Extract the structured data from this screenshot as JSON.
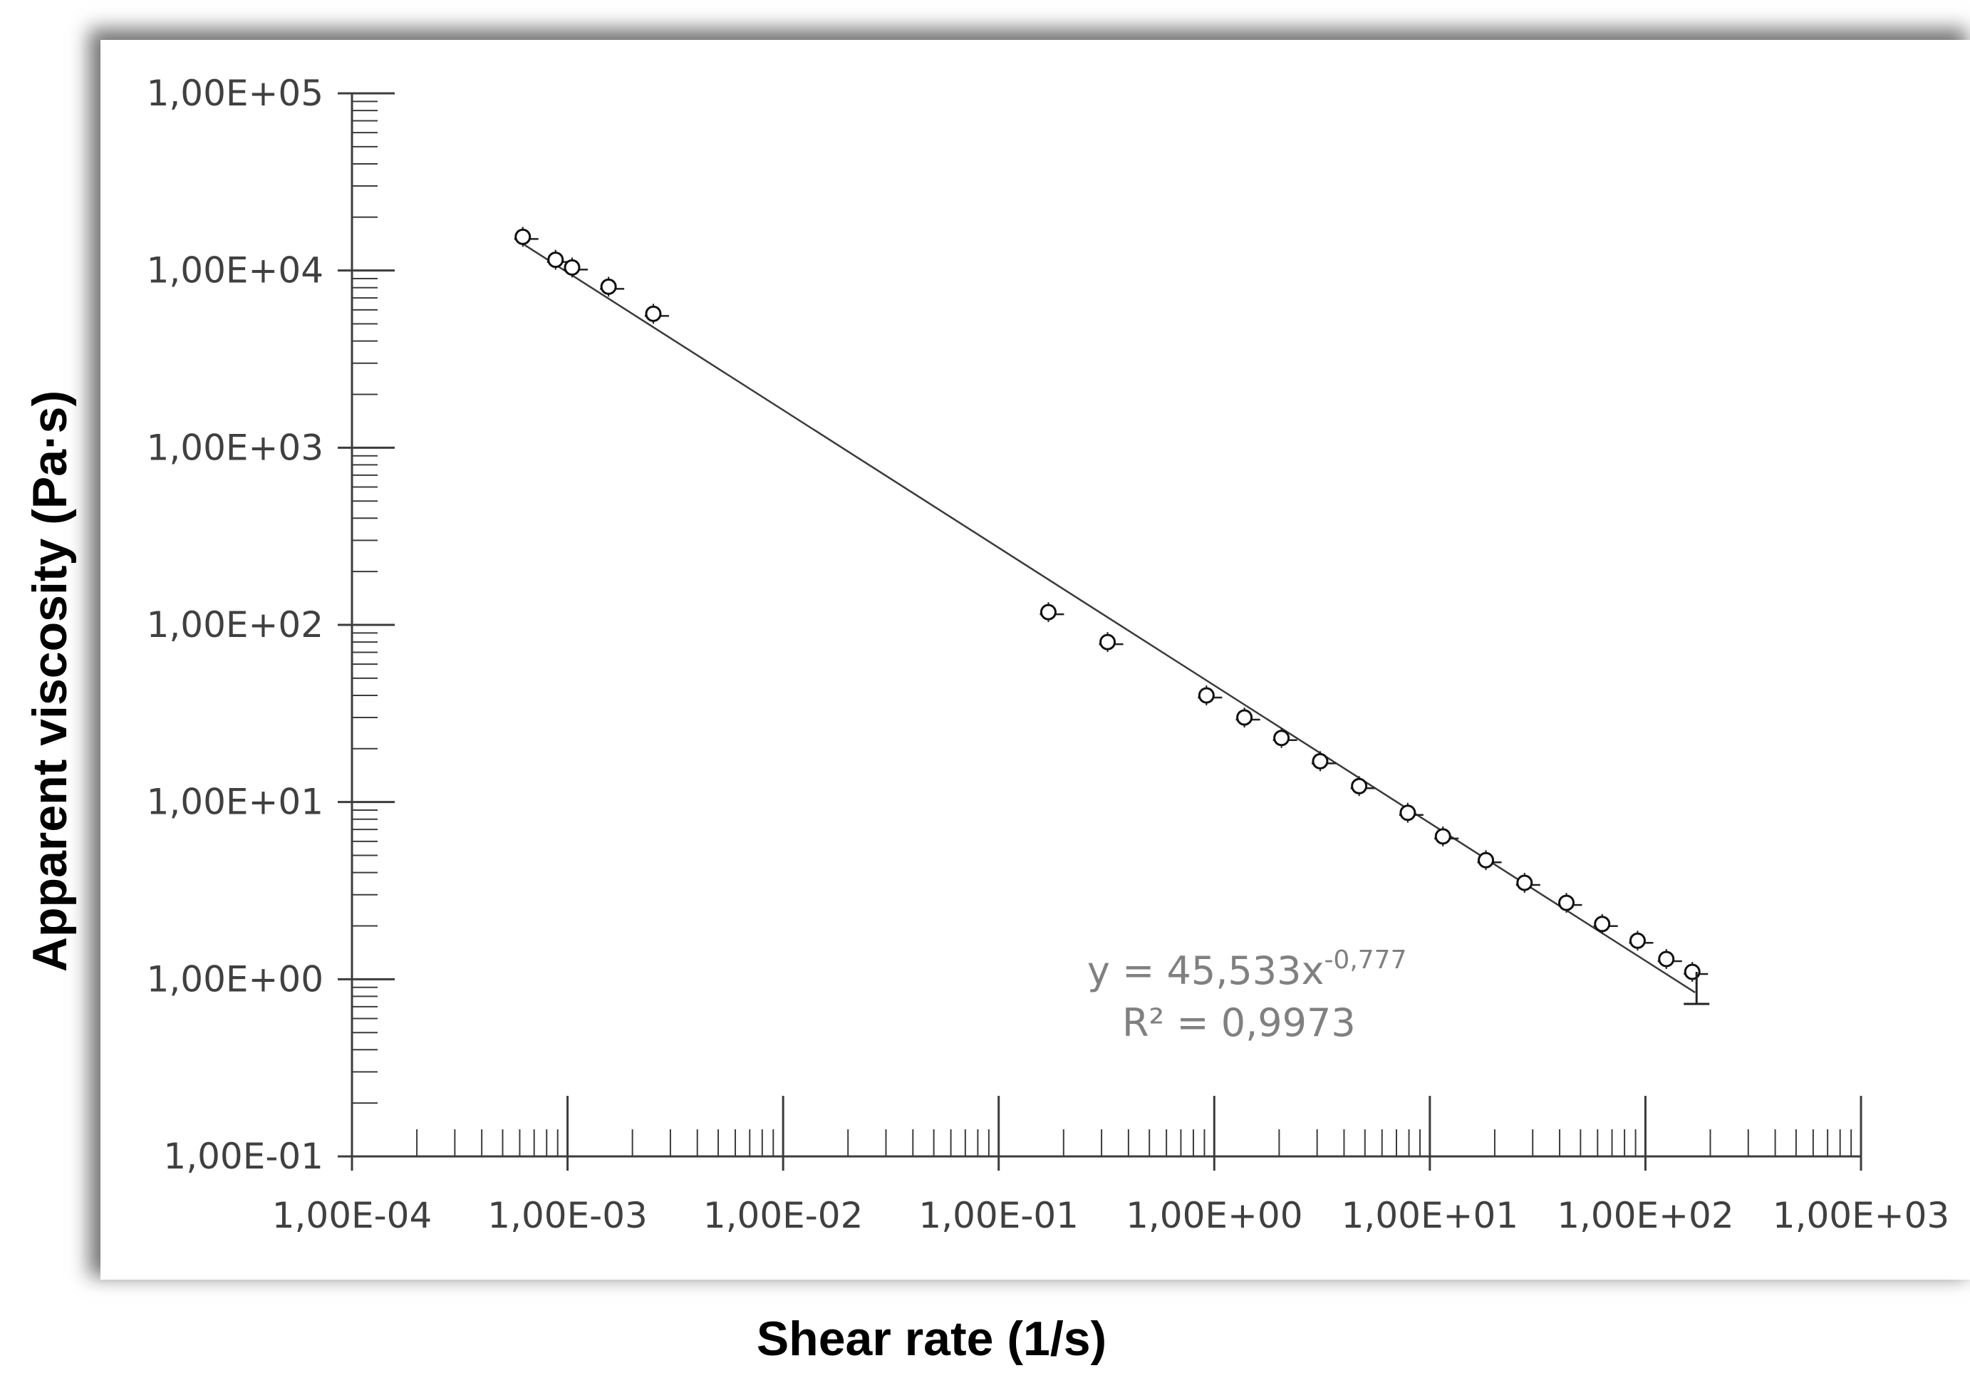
{
  "chart_data": {
    "type": "scatter",
    "xlabel": "Shear rate (1/s)",
    "ylabel": "Apparent viscosity (Pa·s)",
    "xscale": "log",
    "yscale": "log",
    "xlim": [
      0.0001,
      1000
    ],
    "ylim": [
      0.1,
      100000
    ],
    "x_tick_labels": [
      "1,00E-04",
      "1,00E-03",
      "1,00E-02",
      "1,00E-01",
      "1,00E+00",
      "1,00E+01",
      "1,00E+02",
      "1,00E+03"
    ],
    "y_tick_labels": [
      "1,00E-01",
      "1,00E+00",
      "1,00E+01",
      "1,00E+02",
      "1,00E+03",
      "1,00E+04",
      "1,00E+05"
    ],
    "grid": false,
    "legend": "none",
    "series": [
      {
        "marker": "open-circle",
        "color": "#000000",
        "x": [
          0.00062,
          0.00088,
          0.00105,
          0.00155,
          0.0025,
          0.17,
          0.32,
          0.92,
          1.38,
          2.05,
          3.1,
          4.7,
          7.9,
          11.5,
          18.2,
          27.5,
          43,
          63,
          92,
          125,
          165
        ],
        "y": [
          15500,
          11500,
          10400,
          8100,
          5700,
          118,
          80,
          40,
          30,
          23,
          17,
          12.3,
          8.7,
          6.4,
          4.7,
          3.5,
          2.7,
          2.05,
          1.65,
          1.3,
          1.1
        ]
      }
    ],
    "trendline": {
      "type": "power",
      "coefficient": 45.533,
      "exponent": -0.777,
      "x_range": [
        0.00058,
        170
      ],
      "equation_prefix": "y = 45,533x",
      "equation_exponent": "-0,777",
      "r2_label": "R² = 0,9973"
    }
  }
}
